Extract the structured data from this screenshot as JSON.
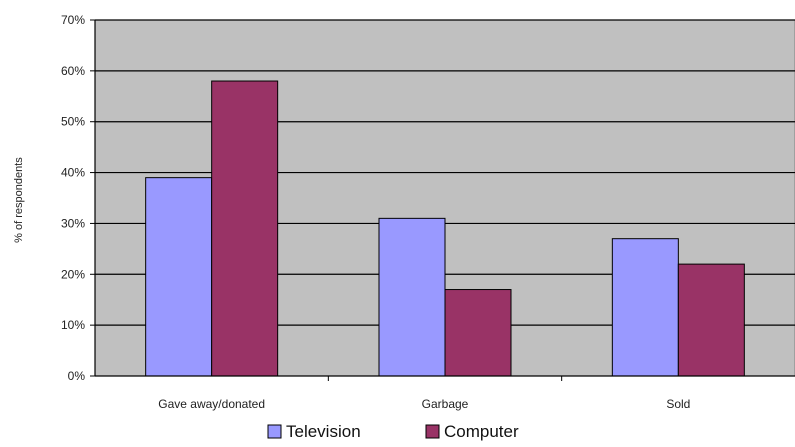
{
  "chart_data": {
    "type": "bar",
    "title": "",
    "xlabel": "",
    "ylabel": "% of respondents",
    "categories": [
      "Gave away/donated",
      "Garbage",
      "Sold"
    ],
    "series": [
      {
        "name": "Television",
        "values": [
          39,
          31,
          27
        ],
        "color": "#9999ff"
      },
      {
        "name": "Computer",
        "values": [
          58,
          17,
          22
        ],
        "color": "#993366"
      }
    ],
    "ylim": [
      0,
      70
    ],
    "yticks": [
      0,
      10,
      20,
      30,
      40,
      50,
      60,
      70
    ],
    "ytick_format": "{v}%",
    "grid": true,
    "plot_background": "#c0c0c0",
    "legend_position": "bottom"
  }
}
